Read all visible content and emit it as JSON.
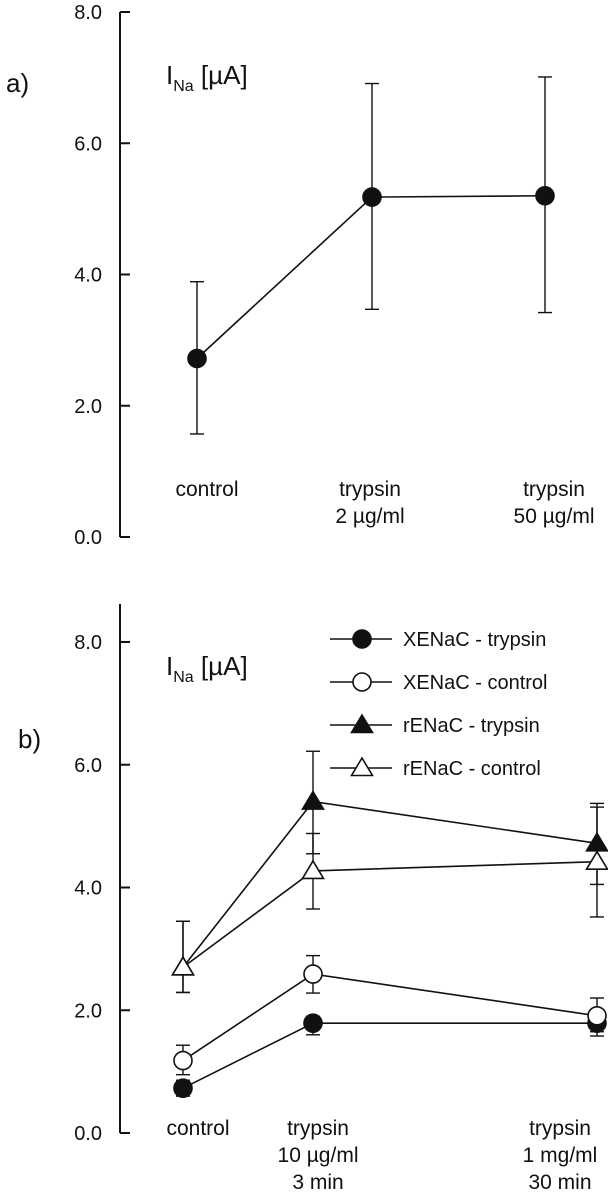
{
  "chart_data": [
    {
      "panel": "a)",
      "type": "line",
      "ylabel_main": "I",
      "ylabel_sub": "Na",
      "ylabel_unit": " [µA]",
      "ylim": [
        0,
        8
      ],
      "yticks": [
        "0.0",
        "2.0",
        "4.0",
        "6.0",
        "8.0"
      ],
      "categories": [
        [
          "control"
        ],
        [
          "trypsin",
          "2 µg/ml"
        ],
        [
          "trypsin",
          "50 µg/ml"
        ]
      ],
      "series": [
        {
          "marker": "circle-filled",
          "values": [
            2.72,
            5.18,
            5.2
          ],
          "err_low": [
            1.57,
            3.47,
            3.42
          ],
          "err_high": [
            3.89,
            6.91,
            7.01
          ]
        }
      ]
    },
    {
      "panel": "b)",
      "type": "line",
      "ylabel_main": "I",
      "ylabel_sub": "Na",
      "ylabel_unit": " [µA]",
      "ylim": [
        0,
        8
      ],
      "yticks": [
        "0.0",
        "2.0",
        "4.0",
        "6.0",
        "8.0"
      ],
      "categories": [
        [
          "control"
        ],
        [
          "trypsin",
          "10  µg/ml",
          "3 min"
        ],
        [
          "trypsin",
          "1 mg/ml",
          "30 min"
        ]
      ],
      "legend_position": "top-right",
      "series": [
        {
          "name": "XENaC - trypsin",
          "marker": "circle-filled",
          "values": [
            0.73,
            1.79,
            1.79
          ],
          "err_low": [
            0.6,
            1.6,
            1.58
          ],
          "err_high": [
            0.86,
            1.9,
            2.0
          ]
        },
        {
          "name": "XENaC - control",
          "marker": "circle-open",
          "values": [
            1.18,
            2.59,
            1.91
          ],
          "err_low": [
            0.95,
            2.28,
            1.65
          ],
          "err_high": [
            1.43,
            2.89,
            2.2
          ]
        },
        {
          "name": "rENaC - trypsin",
          "marker": "triangle-filled",
          "values": [
            2.7,
            5.4,
            4.72
          ],
          "err_low": [
            2.29,
            4.55,
            4.05
          ],
          "err_high": [
            3.45,
            6.22,
            5.37
          ]
        },
        {
          "name": "rENaC - control",
          "marker": "triangle-open",
          "values": [
            2.7,
            4.27,
            4.42
          ],
          "err_low": [
            2.29,
            3.65,
            3.52
          ],
          "err_high": [
            3.45,
            4.88,
            5.31
          ]
        }
      ]
    }
  ]
}
